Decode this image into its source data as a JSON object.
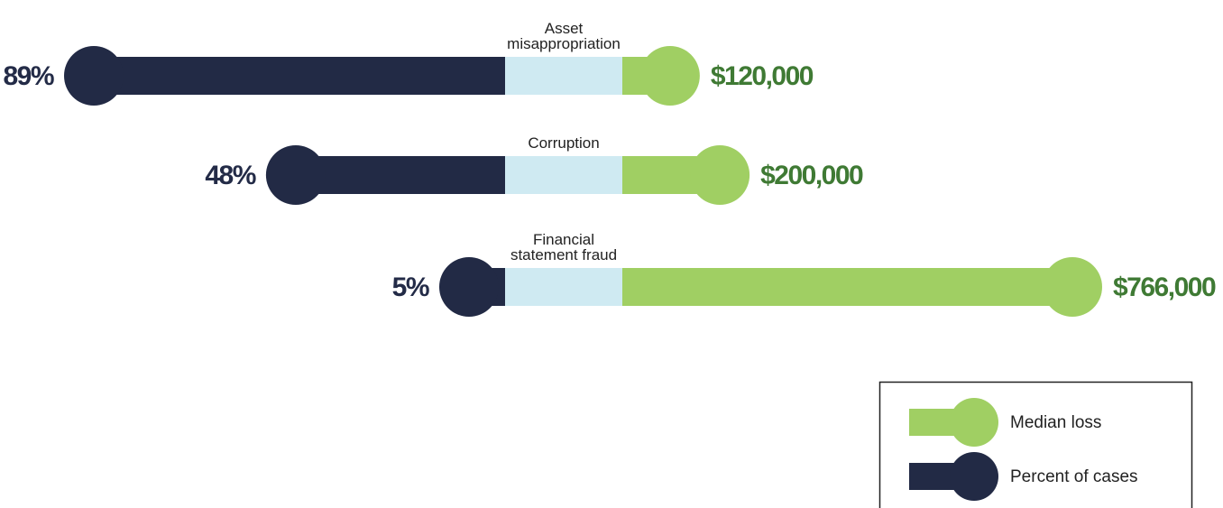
{
  "chart_data": {
    "type": "diverging-lollipop",
    "categories": [
      "Asset\nmisappropriation",
      "Corruption",
      "Financial\nstatement fraud"
    ],
    "series": [
      {
        "name": "Percent of cases",
        "color": "#222a45",
        "label_color": "#232b47",
        "side": "left",
        "values": [
          89,
          48,
          5
        ],
        "value_labels": [
          "89%",
          "48%",
          "5%"
        ]
      },
      {
        "name": "Median loss",
        "color": "#a0cf63",
        "label_color": "#3f7a34",
        "side": "right",
        "values": [
          120000,
          200000,
          766000
        ],
        "value_labels": [
          "$120,000",
          "$200,000",
          "$766,000"
        ]
      }
    ],
    "legend": "bottom-right"
  }
}
